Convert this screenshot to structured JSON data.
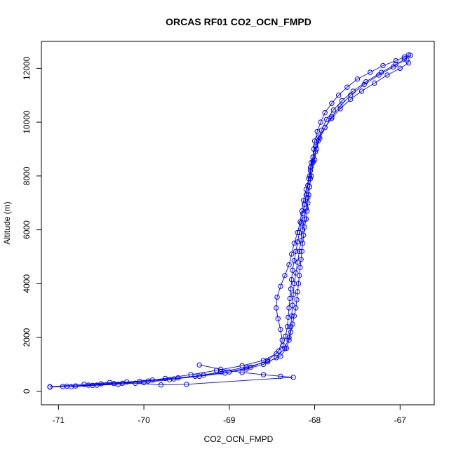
{
  "chart_data": {
    "type": "line",
    "title": "ORCAS RF01 CO2_OCN_FMPD",
    "xlabel": "CO2_OCN_FMPD",
    "ylabel": "Altitude (m)",
    "xlim": [
      -71.2,
      -66.6
    ],
    "ylim": [
      -500,
      13000
    ],
    "xticks": [
      -71,
      -70,
      -69,
      -68,
      -67
    ],
    "yticks": [
      0,
      2000,
      4000,
      6000,
      8000,
      10000,
      12000
    ],
    "grid": false,
    "marker": "open-circle",
    "series_color": "#0000ff",
    "series": [
      {
        "points": [
          [
            -66.9,
            12500
          ],
          [
            -66.95,
            12420
          ],
          [
            -67.05,
            12280
          ],
          [
            -67.2,
            12100
          ],
          [
            -67.35,
            11850
          ],
          [
            -67.5,
            11600
          ],
          [
            -67.62,
            11300
          ],
          [
            -67.72,
            11000
          ],
          [
            -67.8,
            10700
          ],
          [
            -67.88,
            10350
          ],
          [
            -67.93,
            10000
          ],
          [
            -67.97,
            9650
          ],
          [
            -68.0,
            9300
          ],
          [
            -68.01,
            9000
          ],
          [
            -68.02,
            8700
          ],
          [
            -68.04,
            8500
          ],
          [
            -68.05,
            8200
          ],
          [
            -68.05,
            7900
          ],
          [
            -68.06,
            7600
          ],
          [
            -68.07,
            7300
          ],
          [
            -68.08,
            7000
          ],
          [
            -68.09,
            6700
          ],
          [
            -68.1,
            6400
          ],
          [
            -68.12,
            6100
          ],
          [
            -68.13,
            5800
          ],
          [
            -68.14,
            5500
          ],
          [
            -68.15,
            5200
          ],
          [
            -68.16,
            4900
          ],
          [
            -68.17,
            4600
          ],
          [
            -68.18,
            4300
          ],
          [
            -68.19,
            4000
          ],
          [
            -68.2,
            3700
          ],
          [
            -68.21,
            3400
          ],
          [
            -68.22,
            3100
          ],
          [
            -68.24,
            2800
          ],
          [
            -68.26,
            2500
          ],
          [
            -68.28,
            2200
          ],
          [
            -68.3,
            1900
          ],
          [
            -68.33,
            1600
          ],
          [
            -68.4,
            1300
          ],
          [
            -68.55,
            1100
          ],
          [
            -68.8,
            900
          ],
          [
            -69.1,
            720
          ],
          [
            -69.4,
            560
          ],
          [
            -69.7,
            430
          ],
          [
            -70.0,
            330
          ],
          [
            -70.3,
            260
          ],
          [
            -70.6,
            220
          ],
          [
            -70.9,
            190
          ],
          [
            -71.1,
            160
          ]
        ]
      },
      {
        "points": [
          [
            -71.1,
            160
          ],
          [
            -70.8,
            200
          ],
          [
            -70.5,
            280
          ],
          [
            -70.2,
            350
          ],
          [
            -69.9,
            420
          ],
          [
            -69.6,
            500
          ],
          [
            -69.3,
            600
          ],
          [
            -69.0,
            720
          ],
          [
            -68.75,
            900
          ],
          [
            -68.55,
            1150
          ],
          [
            -68.42,
            1500
          ],
          [
            -68.38,
            1900
          ],
          [
            -68.4,
            2300
          ],
          [
            -68.43,
            2700
          ],
          [
            -68.45,
            3100
          ],
          [
            -68.44,
            3500
          ],
          [
            -68.4,
            3900
          ],
          [
            -68.35,
            4300
          ],
          [
            -68.3,
            4700
          ],
          [
            -68.27,
            5100
          ],
          [
            -68.24,
            5500
          ],
          [
            -68.2,
            5900
          ],
          [
            -68.17,
            6300
          ],
          [
            -68.15,
            6700
          ],
          [
            -68.13,
            7100
          ],
          [
            -68.1,
            7500
          ],
          [
            -68.07,
            7900
          ],
          [
            -68.05,
            8300
          ],
          [
            -68.02,
            8550
          ],
          [
            -67.99,
            8900
          ],
          [
            -67.96,
            9300
          ],
          [
            -67.92,
            9700
          ],
          [
            -67.86,
            10100
          ],
          [
            -67.78,
            10450
          ],
          [
            -67.68,
            10800
          ],
          [
            -67.55,
            11150
          ],
          [
            -67.4,
            11500
          ],
          [
            -67.22,
            11850
          ],
          [
            -67.05,
            12150
          ],
          [
            -66.92,
            12300
          ]
        ]
      },
      {
        "points": [
          [
            -66.9,
            12200
          ],
          [
            -67.0,
            12000
          ],
          [
            -67.15,
            11750
          ],
          [
            -67.3,
            11450
          ],
          [
            -67.45,
            11150
          ],
          [
            -67.58,
            10850
          ],
          [
            -67.7,
            10500
          ],
          [
            -67.8,
            10150
          ],
          [
            -67.88,
            9800
          ],
          [
            -67.95,
            9450
          ],
          [
            -67.99,
            9100
          ],
          [
            -68.02,
            8700
          ],
          [
            -68.04,
            8350
          ],
          [
            -68.06,
            8000
          ],
          [
            -68.08,
            7650
          ],
          [
            -68.1,
            7300
          ],
          [
            -68.12,
            6950
          ],
          [
            -68.14,
            6600
          ],
          [
            -68.16,
            6250
          ],
          [
            -68.18,
            5900
          ],
          [
            -68.2,
            5550
          ],
          [
            -68.22,
            5200
          ],
          [
            -68.24,
            4850
          ],
          [
            -68.26,
            4500
          ],
          [
            -68.27,
            4150
          ],
          [
            -68.28,
            3800
          ],
          [
            -68.29,
            3450
          ],
          [
            -68.3,
            3100
          ],
          [
            -68.31,
            2750
          ],
          [
            -68.32,
            2400
          ],
          [
            -68.34,
            2050
          ],
          [
            -68.37,
            1700
          ],
          [
            -68.45,
            1400
          ],
          [
            -68.6,
            1150
          ],
          [
            -68.85,
            950
          ],
          [
            -69.15,
            780
          ],
          [
            -69.45,
            620
          ],
          [
            -69.75,
            480
          ],
          [
            -70.05,
            370
          ],
          [
            -70.35,
            290
          ],
          [
            -70.65,
            230
          ],
          [
            -70.95,
            180
          ]
        ]
      },
      {
        "points": [
          [
            -70.85,
            170
          ],
          [
            -70.55,
            230
          ],
          [
            -70.25,
            300
          ],
          [
            -69.95,
            380
          ],
          [
            -69.65,
            460
          ],
          [
            -69.35,
            560
          ],
          [
            -69.05,
            680
          ],
          [
            -68.8,
            830
          ],
          [
            -68.6,
            1000
          ],
          [
            -68.45,
            1250
          ],
          [
            -68.35,
            1600
          ],
          [
            -68.3,
            2000
          ],
          [
            -68.28,
            2400
          ],
          [
            -68.27,
            2800
          ],
          [
            -68.26,
            3200
          ],
          [
            -68.25,
            3600
          ],
          [
            -68.24,
            4000
          ],
          [
            -68.22,
            4400
          ],
          [
            -68.2,
            4800
          ],
          [
            -68.18,
            5200
          ],
          [
            -68.16,
            5600
          ],
          [
            -68.14,
            6000
          ],
          [
            -68.12,
            6400
          ],
          [
            -68.1,
            6800
          ],
          [
            -68.08,
            7200
          ],
          [
            -68.06,
            7600
          ],
          [
            -68.04,
            8000
          ],
          [
            -68.02,
            8500
          ],
          [
            -68.0,
            8600
          ],
          [
            -67.98,
            9000
          ],
          [
            -67.94,
            9400
          ],
          [
            -67.88,
            9800
          ],
          [
            -67.8,
            10200
          ],
          [
            -67.7,
            10600
          ],
          [
            -67.58,
            11000
          ],
          [
            -67.42,
            11400
          ],
          [
            -67.25,
            11750
          ],
          [
            -67.08,
            12050
          ],
          [
            -66.95,
            12350
          ],
          [
            -66.88,
            12480
          ]
        ]
      },
      {
        "points": [
          [
            -69.35,
            980
          ],
          [
            -69.1,
            820
          ],
          [
            -68.85,
            700
          ],
          [
            -68.6,
            620
          ],
          [
            -68.4,
            560
          ],
          [
            -68.25,
            520
          ],
          [
            -69.5,
            260
          ],
          [
            -69.8,
            240
          ],
          [
            -70.1,
            300
          ],
          [
            -70.4,
            330
          ],
          [
            -70.7,
            260
          ],
          [
            -71.1,
            170
          ]
        ]
      }
    ]
  }
}
